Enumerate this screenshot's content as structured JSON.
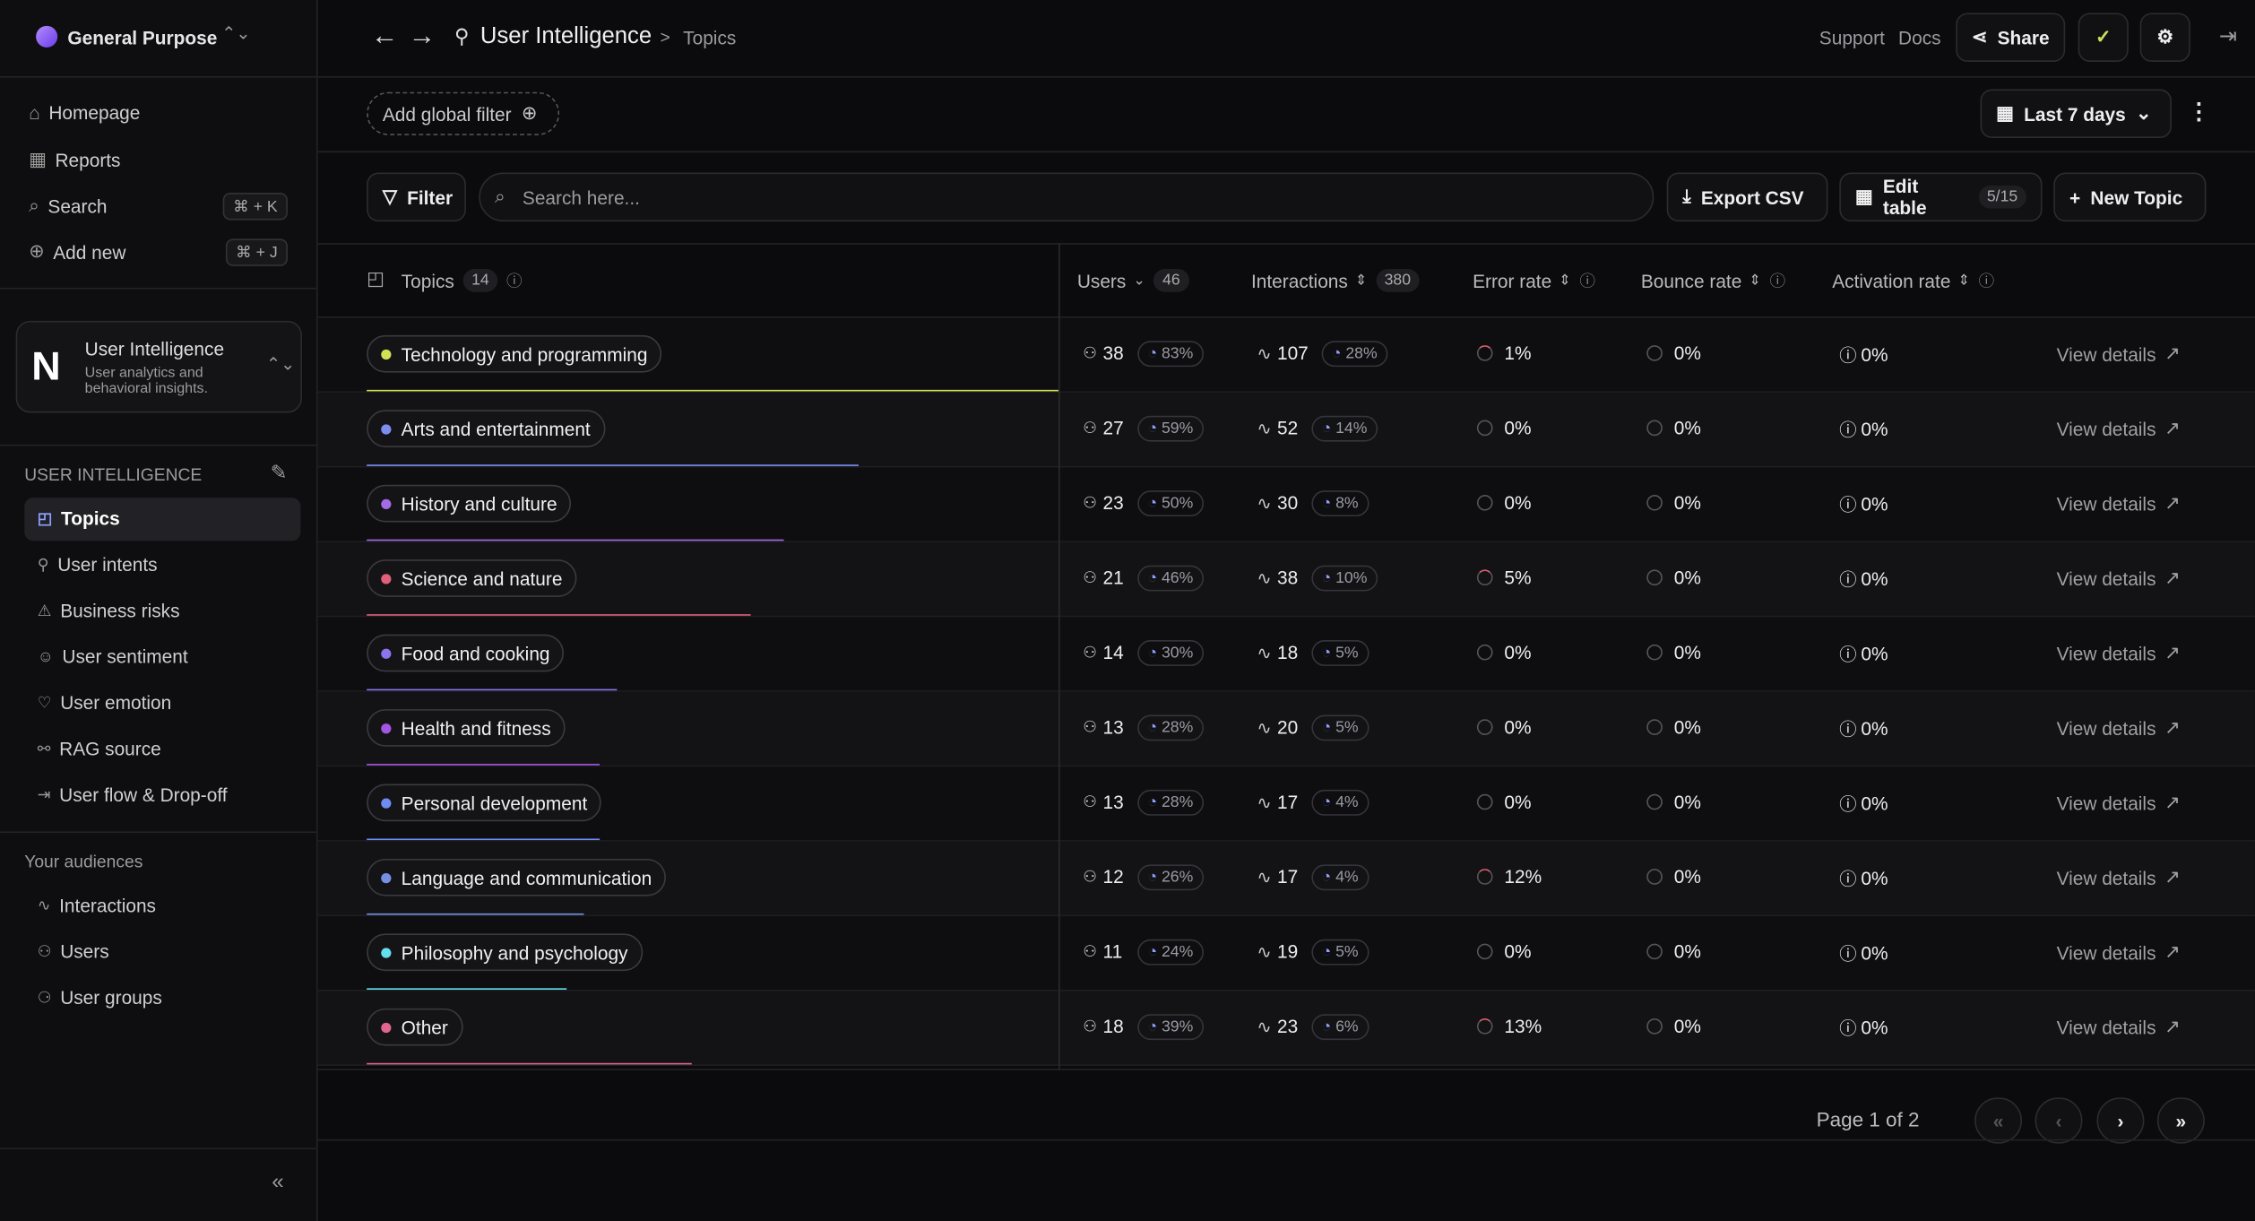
{
  "workspace": "General Purpose",
  "nav": [
    {
      "label": "Homepage"
    },
    {
      "label": "Reports"
    },
    {
      "label": "Search",
      "shortcut": "⌘ + K"
    },
    {
      "label": "Add new",
      "shortcut": "⌘ + J"
    }
  ],
  "project": {
    "name": "User Intelligence",
    "description": "User analytics and behavioral insights."
  },
  "section": {
    "title": "USER INTELLIGENCE",
    "items": [
      "Topics",
      "User intents",
      "Business risks",
      "User sentiment",
      "User emotion",
      "RAG source",
      "User flow & Drop-off"
    ]
  },
  "audiences": {
    "title": "Your audiences",
    "items": [
      "Interactions",
      "Users",
      "User groups"
    ]
  },
  "breadcrumb": {
    "parent": "User Intelligence",
    "separator": ">",
    "current": "Topics"
  },
  "header_links": [
    "Support",
    "Docs"
  ],
  "share": "Share",
  "global_filter": "Add global filter",
  "date_range": "Last 7 days",
  "toolbar": {
    "filter": "Filter",
    "search_placeholder": "Search here...",
    "export": "Export CSV",
    "edit_table": "Edit table",
    "edit_table_count": "5/15",
    "new_topic": "New Topic"
  },
  "columns": [
    {
      "label": "Topics",
      "count": 14
    },
    {
      "label": "Users",
      "count": 46
    },
    {
      "label": "Interactions",
      "count": 380
    },
    {
      "label": "Error rate"
    },
    {
      "label": "Bounce rate"
    },
    {
      "label": "Activation rate"
    }
  ],
  "rows": [
    {
      "topic": "Technology and programming",
      "color": "#d4e157",
      "users": 38,
      "users_share": 83,
      "users_share_label": "83%",
      "interactions": 107,
      "interactions_share_label": "28%",
      "error_rate": "1%",
      "bounce_rate": "0%",
      "activation_rate": "0%"
    },
    {
      "topic": "Arts and entertainment",
      "color": "#7b8ef0",
      "users": 27,
      "users_share": 59,
      "users_share_label": "59%",
      "interactions": 52,
      "interactions_share_label": "14%",
      "error_rate": "0%",
      "bounce_rate": "0%",
      "activation_rate": "0%"
    },
    {
      "topic": "History and culture",
      "color": "#a46ae8",
      "users": 23,
      "users_share": 50,
      "users_share_label": "50%",
      "interactions": 30,
      "interactions_share_label": "8%",
      "error_rate": "0%",
      "bounce_rate": "0%",
      "activation_rate": "0%"
    },
    {
      "topic": "Science and nature",
      "color": "#e0607a",
      "users": 21,
      "users_share": 46,
      "users_share_label": "46%",
      "interactions": 38,
      "interactions_share_label": "10%",
      "error_rate": "5%",
      "bounce_rate": "0%",
      "activation_rate": "0%"
    },
    {
      "topic": "Food and cooking",
      "color": "#8c74ec",
      "users": 14,
      "users_share": 30,
      "users_share_label": "30%",
      "interactions": 18,
      "interactions_share_label": "5%",
      "error_rate": "0%",
      "bounce_rate": "0%",
      "activation_rate": "0%"
    },
    {
      "topic": "Health and fitness",
      "color": "#a455e2",
      "users": 13,
      "users_share": 28,
      "users_share_label": "28%",
      "interactions": 20,
      "interactions_share_label": "5%",
      "error_rate": "0%",
      "bounce_rate": "0%",
      "activation_rate": "0%"
    },
    {
      "topic": "Personal development",
      "color": "#6f8cf0",
      "users": 13,
      "users_share": 28,
      "users_share_label": "28%",
      "interactions": 17,
      "interactions_share_label": "4%",
      "error_rate": "0%",
      "bounce_rate": "0%",
      "activation_rate": "0%"
    },
    {
      "topic": "Language and communication",
      "color": "#7590e2",
      "users": 12,
      "users_share": 26,
      "users_share_label": "26%",
      "interactions": 17,
      "interactions_share_label": "4%",
      "error_rate": "12%",
      "bounce_rate": "0%",
      "activation_rate": "0%"
    },
    {
      "topic": "Philosophy and psychology",
      "color": "#62e0f0",
      "users": 11,
      "users_share": 24,
      "users_share_label": "24%",
      "interactions": 19,
      "interactions_share_label": "5%",
      "error_rate": "0%",
      "bounce_rate": "0%",
      "activation_rate": "0%"
    },
    {
      "topic": "Other",
      "color": "#e0668e",
      "users": 18,
      "users_share": 39,
      "users_share_label": "39%",
      "interactions": 23,
      "interactions_share_label": "6%",
      "error_rate": "13%",
      "bounce_rate": "0%",
      "activation_rate": "0%"
    }
  ],
  "row_action": "View details",
  "pagination": "Page 1 of 2"
}
